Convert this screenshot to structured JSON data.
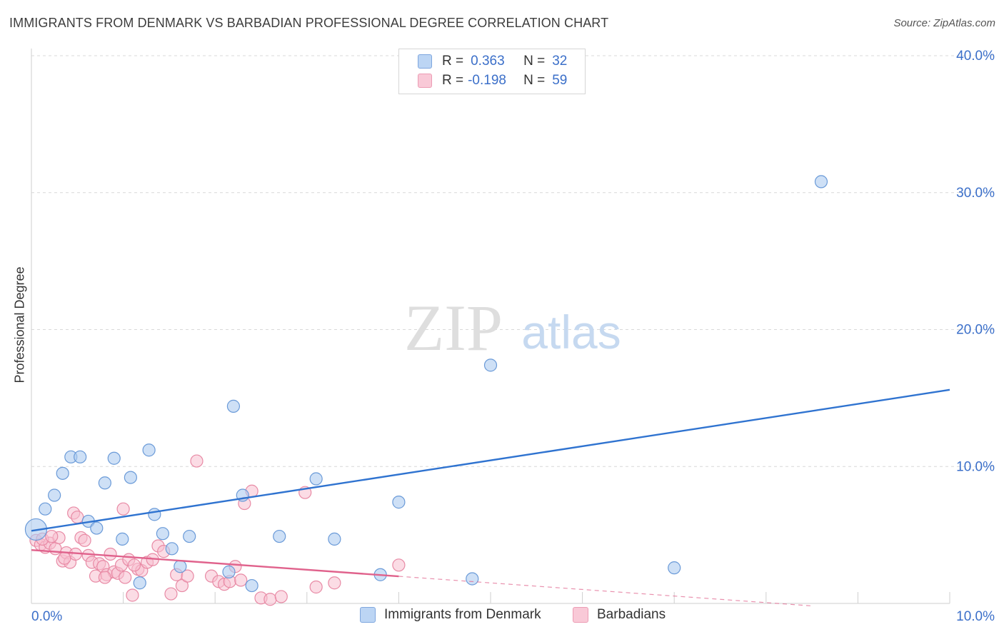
{
  "title": "IMMIGRANTS FROM DENMARK VS BARBADIAN PROFESSIONAL DEGREE CORRELATION CHART",
  "source": "Source: ZipAtlas.com",
  "watermark": {
    "zip": "ZIP",
    "atlas": "atlas"
  },
  "legend": {
    "r_label": "R =",
    "n_label": "N =",
    "rows": [
      {
        "r": "0.363",
        "n": "32"
      },
      {
        "r": "-0.198",
        "n": "59"
      }
    ]
  },
  "colors": {
    "blue_fill": "#aecbf0",
    "blue_stroke": "#6a9ad8",
    "blue_line": "#2f73d0",
    "pink_fill": "#f7bfcf",
    "pink_stroke": "#e88aa5",
    "pink_line": "#e0628c",
    "tick_text": "#3b6fc9",
    "grid": "#d9d9d9"
  },
  "chart_data": {
    "type": "scatter",
    "title": "IMMIGRANTS FROM DENMARK VS BARBADIAN PROFESSIONAL DEGREE CORRELATION CHART",
    "xlabel": "",
    "ylabel": "Professional Degree",
    "xlim": [
      0,
      10
    ],
    "ylim": [
      0,
      40
    ],
    "x_tick_labels": [
      "0.0%",
      "10.0%"
    ],
    "y_ticks": [
      10,
      20,
      30,
      40
    ],
    "y_tick_labels": [
      "10.0%",
      "20.0%",
      "30.0%",
      "40.0%"
    ],
    "grid": true,
    "legend_position": "bottom-center",
    "series": [
      {
        "name": "Immigrants from Denmark",
        "color": "blue",
        "trend": {
          "x": [
            0,
            10
          ],
          "y": [
            5.3,
            15.6
          ],
          "dashed_from": null
        },
        "points": [
          [
            0.05,
            5.4
          ],
          [
            0.15,
            6.9
          ],
          [
            0.25,
            7.9
          ],
          [
            0.34,
            9.5
          ],
          [
            0.43,
            10.7
          ],
          [
            0.53,
            10.7
          ],
          [
            0.62,
            6.0
          ],
          [
            0.71,
            5.5
          ],
          [
            0.8,
            8.8
          ],
          [
            0.9,
            10.6
          ],
          [
            0.99,
            4.7
          ],
          [
            1.08,
            9.2
          ],
          [
            1.18,
            1.5
          ],
          [
            1.28,
            11.2
          ],
          [
            1.34,
            6.5
          ],
          [
            1.43,
            5.1
          ],
          [
            1.53,
            4.0
          ],
          [
            1.62,
            2.7
          ],
          [
            1.72,
            4.9
          ],
          [
            2.15,
            2.3
          ],
          [
            2.2,
            14.4
          ],
          [
            2.3,
            7.9
          ],
          [
            2.4,
            1.3
          ],
          [
            2.7,
            4.9
          ],
          [
            3.1,
            9.1
          ],
          [
            3.3,
            4.7
          ],
          [
            3.8,
            2.1
          ],
          [
            4.0,
            7.4
          ],
          [
            4.8,
            1.8
          ],
          [
            5.0,
            17.4
          ],
          [
            7.0,
            2.6
          ],
          [
            8.6,
            30.8
          ]
        ]
      },
      {
        "name": "Barbadians",
        "color": "pink",
        "trend": {
          "x": [
            0,
            10
          ],
          "y": [
            3.9,
            -0.9
          ],
          "dashed_from": 4.0
        },
        "points": [
          [
            0.05,
            4.6
          ],
          [
            0.1,
            4.3
          ],
          [
            0.15,
            4.1
          ],
          [
            0.2,
            4.4
          ],
          [
            0.26,
            4.0
          ],
          [
            0.3,
            4.8
          ],
          [
            0.34,
            3.1
          ],
          [
            0.38,
            3.7
          ],
          [
            0.42,
            3.0
          ],
          [
            0.46,
            6.6
          ],
          [
            0.5,
            6.3
          ],
          [
            0.54,
            4.8
          ],
          [
            0.58,
            4.6
          ],
          [
            0.62,
            3.5
          ],
          [
            0.66,
            3.0
          ],
          [
            0.7,
            2.0
          ],
          [
            0.74,
            2.9
          ],
          [
            0.78,
            2.7
          ],
          [
            0.82,
            2.1
          ],
          [
            0.86,
            3.6
          ],
          [
            0.9,
            2.3
          ],
          [
            0.94,
            2.2
          ],
          [
            0.98,
            2.8
          ],
          [
            1.02,
            1.9
          ],
          [
            1.06,
            3.2
          ],
          [
            1.1,
            0.6
          ],
          [
            1.16,
            2.5
          ],
          [
            1.2,
            2.4
          ],
          [
            1.26,
            3.0
          ],
          [
            1.32,
            3.2
          ],
          [
            1.38,
            4.2
          ],
          [
            1.44,
            3.8
          ],
          [
            1.52,
            0.7
          ],
          [
            1.58,
            2.1
          ],
          [
            1.64,
            1.3
          ],
          [
            1.7,
            2.0
          ],
          [
            1.96,
            2.0
          ],
          [
            2.04,
            1.6
          ],
          [
            2.1,
            1.4
          ],
          [
            2.16,
            1.6
          ],
          [
            2.22,
            2.7
          ],
          [
            2.28,
            1.7
          ],
          [
            2.4,
            8.2
          ],
          [
            2.5,
            0.4
          ],
          [
            2.6,
            0.3
          ],
          [
            2.72,
            0.5
          ],
          [
            2.98,
            8.1
          ],
          [
            3.1,
            1.2
          ],
          [
            3.3,
            1.5
          ],
          [
            4.0,
            2.8
          ],
          [
            1.0,
            6.9
          ],
          [
            1.8,
            10.4
          ],
          [
            0.12,
            4.7
          ],
          [
            0.22,
            4.9
          ],
          [
            0.48,
            3.6
          ],
          [
            1.12,
            2.8
          ],
          [
            2.32,
            7.3
          ],
          [
            0.36,
            3.3
          ],
          [
            0.8,
            1.9
          ]
        ]
      }
    ]
  },
  "bottom_legend": [
    "Immigrants from Denmark",
    "Barbadians"
  ]
}
